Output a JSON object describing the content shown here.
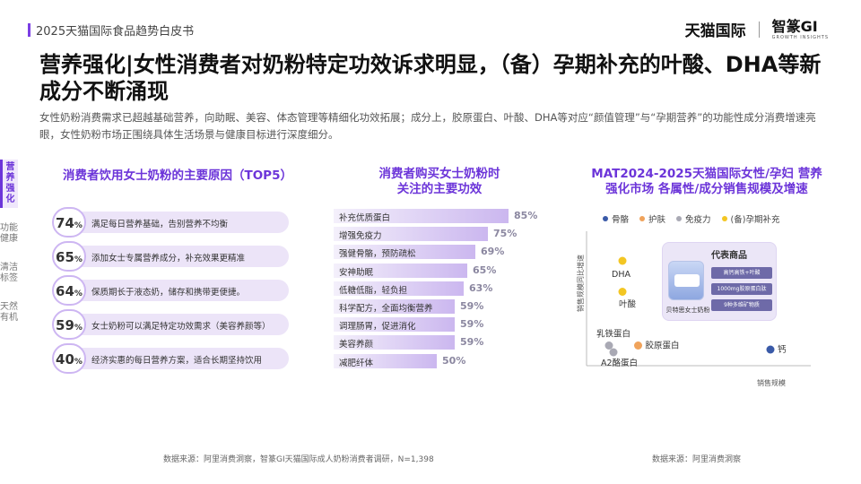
{
  "header": {
    "report_title": "2025天猫国际食品趋势白皮书",
    "brand_tmall": "天猫国际",
    "brand_gi": "智篆GI",
    "brand_gi_sub": "GROWTH INSIGHTS"
  },
  "headline": "营养强化|女性消费者对奶粉特定功效诉求明显，（备）孕期补充的叶酸、DHA等新成分不断涌现",
  "intro": "女性奶粉消费需求已超越基础营养，向助眠、美容、体态管理等精细化功效拓展；成分上，胶原蛋白、叶酸、DHA等对应“颜值管理”与“孕期营养”的功能性成分消费增速亮眼，女性奶粉市场正围绕具体生活场景与健康目标进行深度细分。",
  "side_nav": [
    "营养强化",
    "功能健康",
    "清洁标签",
    "天然有机"
  ],
  "colors": {
    "accent": "#6c35d9",
    "bar": "#cbb7ef",
    "bubble_border": "#cdb6f2"
  },
  "panel1": {
    "title": "消费者饮用女士奶粉的主要原因（TOP5）"
  },
  "panel2": {
    "title_line1": "消费者购买女士奶粉时",
    "title_line2": "关注的主要功效"
  },
  "panel3": {
    "title_line1": "MAT2024-2025天猫国际女性/孕妇 营养",
    "title_line2": "强化市场 各属性/成分销售规模及增速"
  },
  "chart_data": [
    {
      "type": "bar",
      "title": "消费者饮用女士奶粉的主要原因（TOP5）",
      "categories": [
        "满足每日营养基础，告别营养不均衡",
        "添加女士专属营养成分，补充效果更精准",
        "保质期长于液态奶，储存和携带更便捷。",
        "女士奶粉可以满足特定功效需求（美容养颜等）",
        "经济实惠的每日营养方案，适合长期坚持饮用"
      ],
      "values": [
        74,
        65,
        64,
        59,
        40
      ],
      "unit": "%"
    },
    {
      "type": "bar",
      "title": "消费者购买女士奶粉时关注的主要功效",
      "categories": [
        "补充优质蛋白",
        "增强免疫力",
        "强健骨骼，预防疏松",
        "安神助眠",
        "低糖低脂，轻负担",
        "科学配方，全面均衡营养",
        "调理肠胃，促进消化",
        "美容养颜",
        "减肥纤体"
      ],
      "values": [
        85,
        75,
        69,
        65,
        63,
        59,
        59,
        59,
        50
      ],
      "unit": "%"
    },
    {
      "type": "scatter",
      "title": "MAT2024-2025天猫国际女性/孕妇 营养强化市场 各属性/成分销售规模及增速",
      "xlabel": "销售规模",
      "ylabel": "销售规模同比增速",
      "legend": [
        "骨骼",
        "护肤",
        "免疫力",
        "(备)孕期补充"
      ],
      "series": [
        {
          "name": "骨骼",
          "color": "#3a5aa8",
          "points": [
            {
              "label": "钙",
              "x": 0.82,
              "y": 0.12
            }
          ]
        },
        {
          "name": "护肤",
          "color": "#f0a35b",
          "points": [
            {
              "label": "胶原蛋白",
              "x": 0.23,
              "y": 0.15
            }
          ]
        },
        {
          "name": "免疫力",
          "color": "#a9a9b4",
          "points": [
            {
              "label": "乳铁蛋白",
              "x": 0.1,
              "y": 0.15
            },
            {
              "label": "A2酪蛋白",
              "x": 0.12,
              "y": 0.1
            }
          ]
        },
        {
          "name": "(备)孕期补充",
          "color": "#f3c623",
          "points": [
            {
              "label": "DHA",
              "x": 0.16,
              "y": 0.78
            },
            {
              "label": "叶酸",
              "x": 0.16,
              "y": 0.55
            }
          ]
        }
      ],
      "xlim": [
        0,
        1
      ],
      "ylim": [
        0,
        1
      ]
    }
  ],
  "product_card": {
    "title": "代表商品",
    "tags": [
      "高钙高铁+叶酸",
      "1000mg胶原蛋白肽",
      "9种多维矿物质"
    ],
    "name": "贝特思女士奶粉"
  },
  "sources": {
    "left": "数据来源：阿里消费洞察，智篆GI天猫国际成人奶粉消费者调研，N=1,398",
    "right": "数据来源：阿里消费洞察"
  }
}
